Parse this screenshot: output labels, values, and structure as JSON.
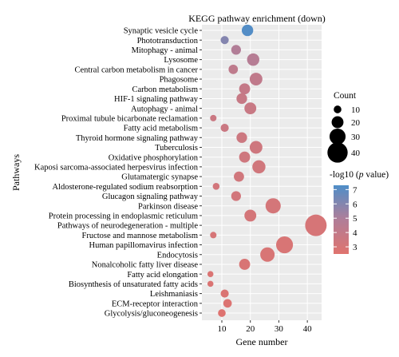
{
  "chart_data": {
    "type": "scatter",
    "title": "KEGG pathway enrichment (down)",
    "xlabel": "Gene number",
    "ylabel": "Pathways",
    "xlim": [
      3,
      45
    ],
    "xticks": [
      10,
      20,
      30,
      40
    ],
    "grid": true,
    "categories": [
      "Synaptic vesicle cycle",
      "Phototransduction",
      "Mitophagy - animal",
      "Lysosome",
      "Central carbon metabolism in cancer",
      "Phagosome",
      "Carbon metabolism",
      "HIF-1 signaling pathway",
      "Autophagy - animal",
      "Proximal tubule bicarbonate reclamation",
      "Fatty acid metabolism",
      "Thyroid hormone signaling pathway",
      "Tuberculosis",
      "Oxidative phosphorylation",
      "Kaposi sarcoma-associated herpesvirus infection",
      "Glutamatergic synapse",
      "Aldosterone-regulated sodium reabsorption",
      "Glucagon signaling pathway",
      "Parkinson disease",
      "Protein processing in endoplasmic reticulum",
      "Pathways of neurodegeneration - multiple",
      "Fructose and mannose metabolism",
      "Human papillomavirus infection",
      "Endocytosis",
      "Nonalcoholic fatty liver disease",
      "Fatty acid elongation",
      "Biosynthesis of unsaturated fatty acids",
      "Leishmaniasis",
      "ECM-receptor interaction",
      "Glycolysis/gluconeogenesis"
    ],
    "points": [
      {
        "x": 19,
        "p": 7.2
      },
      {
        "x": 11,
        "p": 6.0
      },
      {
        "x": 15,
        "p": 4.8
      },
      {
        "x": 21,
        "p": 4.6
      },
      {
        "x": 14,
        "p": 4.2
      },
      {
        "x": 22,
        "p": 4.1
      },
      {
        "x": 18,
        "p": 3.9
      },
      {
        "x": 17,
        "p": 3.8
      },
      {
        "x": 20,
        "p": 3.7
      },
      {
        "x": 7,
        "p": 3.6
      },
      {
        "x": 11,
        "p": 3.6
      },
      {
        "x": 17,
        "p": 3.5
      },
      {
        "x": 22,
        "p": 3.4
      },
      {
        "x": 18,
        "p": 3.4
      },
      {
        "x": 23,
        "p": 3.3
      },
      {
        "x": 16,
        "p": 3.3
      },
      {
        "x": 8,
        "p": 3.2
      },
      {
        "x": 15,
        "p": 3.2
      },
      {
        "x": 28,
        "p": 3.1
      },
      {
        "x": 20,
        "p": 3.1
      },
      {
        "x": 43,
        "p": 3.0
      },
      {
        "x": 7,
        "p": 3.0
      },
      {
        "x": 32,
        "p": 2.9
      },
      {
        "x": 26,
        "p": 2.9
      },
      {
        "x": 18,
        "p": 2.9
      },
      {
        "x": 6,
        "p": 2.8
      },
      {
        "x": 6,
        "p": 2.8
      },
      {
        "x": 11,
        "p": 2.8
      },
      {
        "x": 12,
        "p": 2.7
      },
      {
        "x": 10,
        "p": 2.6
      }
    ],
    "size_legend": {
      "title": "Count",
      "values": [
        10,
        20,
        30,
        40
      ]
    },
    "color_legend": {
      "title_prefix": "-log10 (",
      "title_italic": "p",
      "title_suffix": " value)",
      "ticks": [
        3,
        4,
        5,
        6,
        7
      ],
      "range": [
        2.5,
        7.3
      ],
      "color_low": "#e0736e",
      "color_mid": "#b07e99",
      "color_high": "#4f8ec8"
    },
    "background": "#ebebeb",
    "grid_color": "#ffffff"
  }
}
